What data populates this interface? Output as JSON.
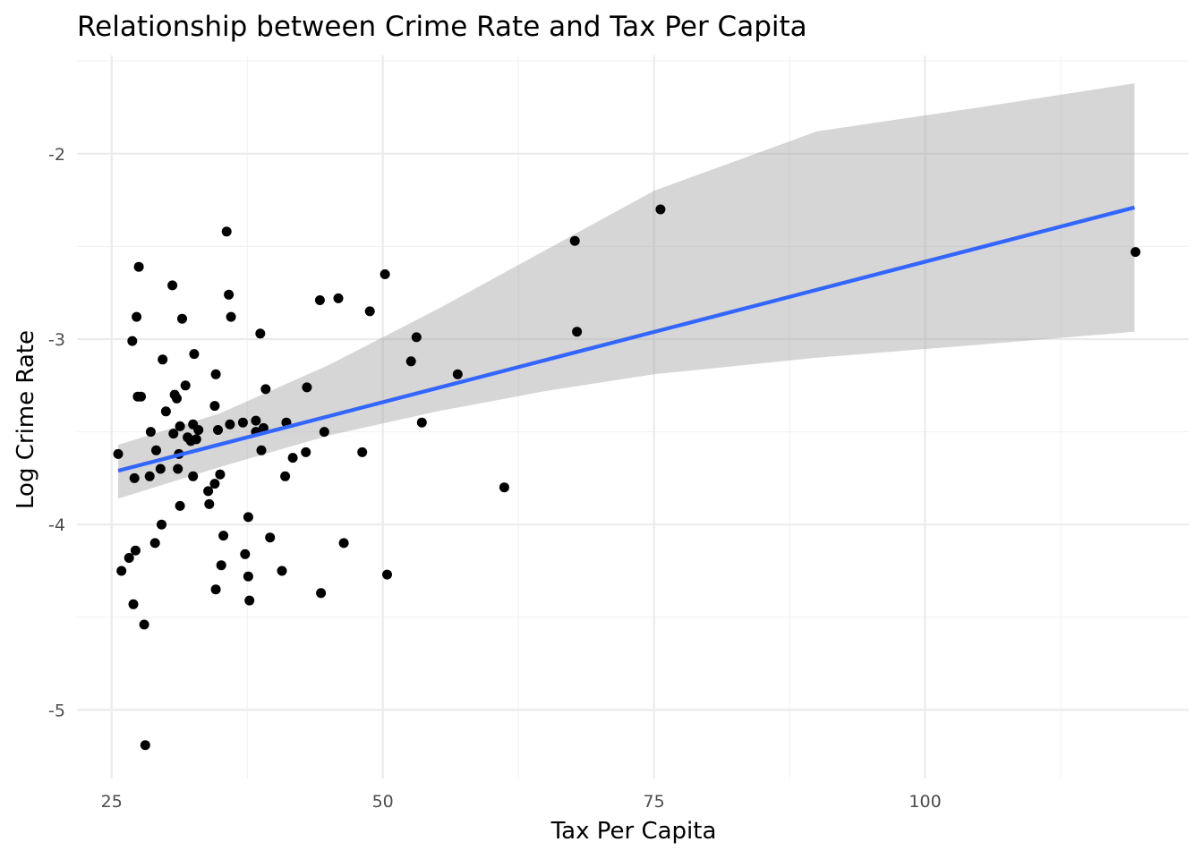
{
  "chart_data": {
    "type": "scatter",
    "title": "Relationship between Crime Rate and Tax Per Capita",
    "xlabel": "Tax Per Capita",
    "ylabel": "Log Crime Rate",
    "xlim": [
      21.8,
      124.3
    ],
    "ylim": [
      -5.37,
      -1.47
    ],
    "x_ticks": [
      25,
      50,
      75,
      100
    ],
    "x_tick_labels": [
      "25",
      "50",
      "75",
      "100"
    ],
    "y_ticks": [
      -5,
      -4,
      -3,
      -2
    ],
    "y_tick_labels": [
      "-5",
      "-4",
      "-3",
      "-2"
    ],
    "grid": true,
    "legend": "none",
    "colors": {
      "points": "#000000",
      "fit_line": "#3366ff",
      "ci_band": "#999999",
      "grid": "#ebebeb"
    },
    "fit": {
      "method": "linear",
      "line": [
        [
          25.6,
          -3.71
        ],
        [
          119.3,
          -2.29
        ]
      ],
      "ci_upper": [
        [
          25.6,
          -3.57
        ],
        [
          35,
          -3.4
        ],
        [
          45,
          -3.14
        ],
        [
          55,
          -2.84
        ],
        [
          65,
          -2.52
        ],
        [
          75,
          -2.2
        ],
        [
          90,
          -1.88
        ],
        [
          105,
          -1.75
        ],
        [
          119.3,
          -1.62
        ]
      ],
      "ci_lower": [
        [
          25.6,
          -3.86
        ],
        [
          35,
          -3.69
        ],
        [
          45,
          -3.52
        ],
        [
          55,
          -3.39
        ],
        [
          65,
          -3.28
        ],
        [
          75,
          -3.19
        ],
        [
          90,
          -3.1
        ],
        [
          105,
          -3.03
        ],
        [
          119.3,
          -2.96
        ]
      ]
    },
    "points": [
      [
        25.6,
        -3.62
      ],
      [
        25.9,
        -4.25
      ],
      [
        26.6,
        -4.18
      ],
      [
        26.9,
        -3.01
      ],
      [
        27.0,
        -4.43
      ],
      [
        27.1,
        -3.75
      ],
      [
        27.2,
        -4.14
      ],
      [
        27.3,
        -2.88
      ],
      [
        27.4,
        -3.31
      ],
      [
        27.5,
        -2.61
      ],
      [
        27.7,
        -3.31
      ],
      [
        28.0,
        -4.54
      ],
      [
        28.1,
        -5.19
      ],
      [
        28.5,
        -3.74
      ],
      [
        28.6,
        -3.5
      ],
      [
        29.0,
        -4.1
      ],
      [
        29.1,
        -3.6
      ],
      [
        29.5,
        -3.7
      ],
      [
        29.6,
        -4.0
      ],
      [
        29.7,
        -3.11
      ],
      [
        30.0,
        -3.39
      ],
      [
        30.6,
        -2.71
      ],
      [
        30.7,
        -3.51
      ],
      [
        30.8,
        -3.3
      ],
      [
        31.0,
        -3.32
      ],
      [
        31.1,
        -3.7
      ],
      [
        31.2,
        -3.62
      ],
      [
        31.3,
        -3.47
      ],
      [
        31.3,
        -3.9
      ],
      [
        31.5,
        -2.89
      ],
      [
        31.8,
        -3.25
      ],
      [
        32.0,
        -3.53
      ],
      [
        32.3,
        -3.55
      ],
      [
        32.5,
        -3.46
      ],
      [
        32.5,
        -3.74
      ],
      [
        32.6,
        -3.08
      ],
      [
        32.8,
        -3.54
      ],
      [
        33.0,
        -3.49
      ],
      [
        33.9,
        -3.82
      ],
      [
        34.0,
        -3.89
      ],
      [
        34.5,
        -3.36
      ],
      [
        34.5,
        -3.78
      ],
      [
        34.6,
        -3.19
      ],
      [
        34.6,
        -4.35
      ],
      [
        34.8,
        -3.49
      ],
      [
        35.0,
        -3.73
      ],
      [
        35.1,
        -4.22
      ],
      [
        35.3,
        -4.06
      ],
      [
        35.6,
        -2.42
      ],
      [
        35.8,
        -2.76
      ],
      [
        35.9,
        -3.46
      ],
      [
        36.0,
        -2.88
      ],
      [
        37.1,
        -3.45
      ],
      [
        37.3,
        -4.16
      ],
      [
        37.6,
        -3.96
      ],
      [
        37.6,
        -4.28
      ],
      [
        37.7,
        -4.41
      ],
      [
        38.3,
        -3.5
      ],
      [
        38.3,
        -3.44
      ],
      [
        38.7,
        -2.97
      ],
      [
        38.8,
        -3.6
      ],
      [
        39.0,
        -3.48
      ],
      [
        39.2,
        -3.27
      ],
      [
        39.6,
        -4.07
      ],
      [
        40.7,
        -4.25
      ],
      [
        41.0,
        -3.74
      ],
      [
        41.1,
        -3.45
      ],
      [
        41.7,
        -3.64
      ],
      [
        42.9,
        -3.61
      ],
      [
        43.0,
        -3.26
      ],
      [
        44.2,
        -2.79
      ],
      [
        44.3,
        -4.37
      ],
      [
        44.6,
        -3.5
      ],
      [
        45.9,
        -2.78
      ],
      [
        46.4,
        -4.1
      ],
      [
        48.1,
        -3.61
      ],
      [
        48.8,
        -2.85
      ],
      [
        50.2,
        -2.65
      ],
      [
        50.4,
        -4.27
      ],
      [
        52.6,
        -3.12
      ],
      [
        53.1,
        -2.99
      ],
      [
        53.6,
        -3.45
      ],
      [
        56.9,
        -3.19
      ],
      [
        61.2,
        -3.8
      ],
      [
        67.7,
        -2.47
      ],
      [
        67.9,
        -2.96
      ],
      [
        75.6,
        -2.3
      ],
      [
        119.4,
        -2.53
      ]
    ]
  }
}
